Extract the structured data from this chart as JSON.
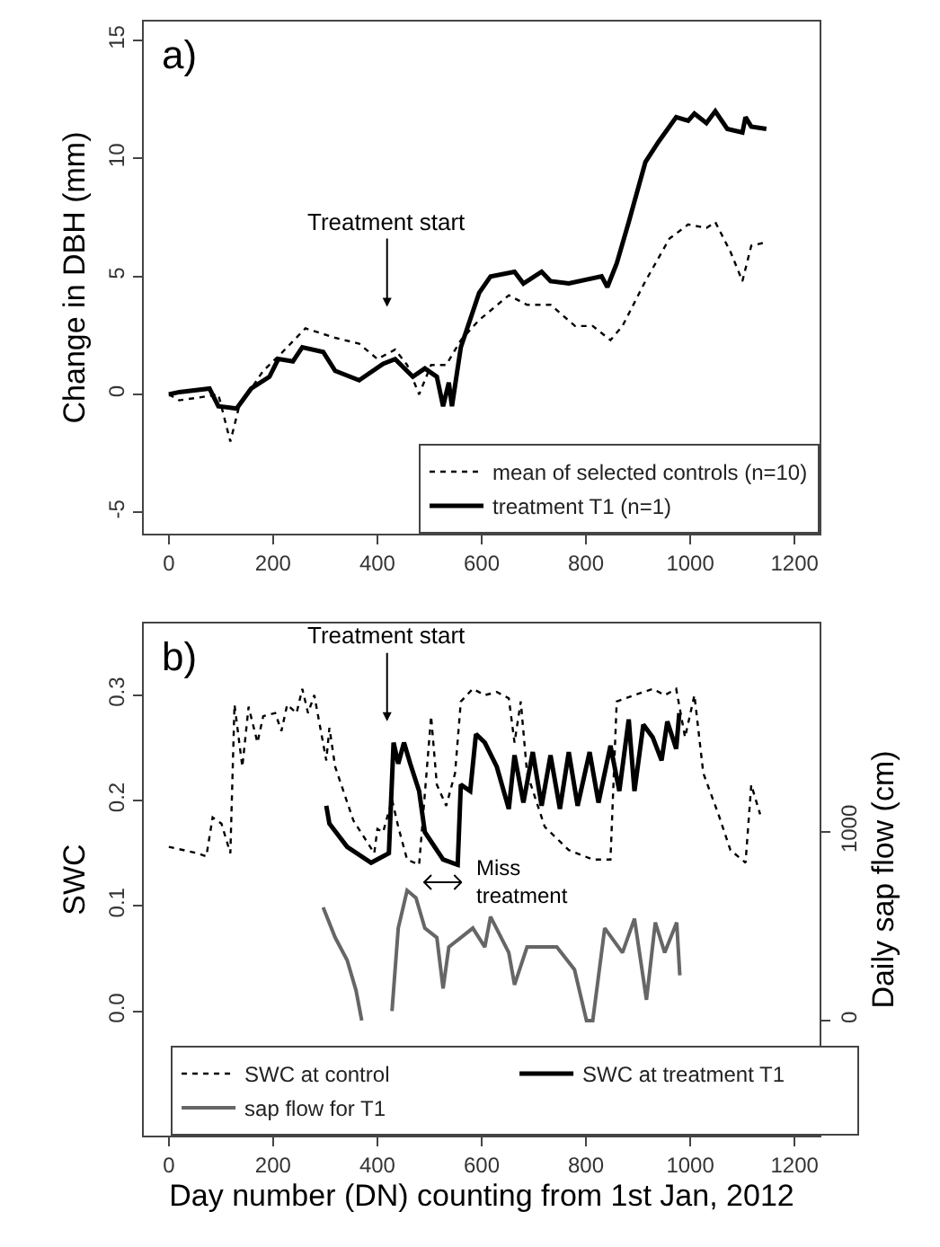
{
  "chart_data": [
    {
      "type": "line",
      "ylabel": "Change in DBH (mm)",
      "xlim": [
        -48,
        1248
      ],
      "ylim": [
        -5.9,
        15.8
      ],
      "xticks": [
        0,
        200,
        400,
        600,
        800,
        1000,
        1200
      ],
      "yticks": [
        -5,
        0,
        5,
        10,
        15
      ],
      "grid": false,
      "legend": "bottom right",
      "marker": "none",
      "annotations": [
        "a)",
        "Treatment start"
      ],
      "series": [
        {
          "name": "mean of selected controls (n=10)",
          "color": "#000000",
          "line_style": "dotted",
          "x": [
            0,
            20,
            67,
            95,
            118,
            135,
            181,
            216,
            262,
            319,
            365,
            400,
            434,
            457,
            480,
            503,
            532,
            560,
            595,
            652,
            687,
            732,
            779,
            813,
            847,
            870,
            914,
            960,
            996,
            1031,
            1048,
            1077,
            1100,
            1117,
            1146
          ],
          "values": [
            0,
            -0.25,
            -0.1,
            0,
            -2.0,
            -0.5,
            1.0,
            1.75,
            2.8,
            2.4,
            2.15,
            1.5,
            1.9,
            1.25,
            0,
            1.25,
            1.25,
            2.3,
            3.15,
            4.2,
            3.8,
            3.8,
            2.9,
            2.9,
            2.3,
            2.9,
            4.8,
            6.6,
            7.2,
            7.05,
            7.3,
            6.05,
            4.8,
            6.3,
            6.45
          ]
        },
        {
          "name": "treatment T1 (n=1)",
          "color": "#000000",
          "line_style": "solid",
          "x": [
            0,
            20,
            78,
            95,
            130,
            158,
            193,
            210,
            238,
            256,
            296,
            319,
            365,
            411,
            434,
            468,
            491,
            514,
            526,
            537,
            543,
            560,
            595,
            617,
            663,
            680,
            715,
            732,
            767,
            830,
            841,
            859,
            882,
            914,
            939,
            973,
            996,
            1008,
            1031,
            1048,
            1071,
            1100,
            1106,
            1117,
            1146
          ],
          "values": [
            0,
            0.1,
            0.25,
            -0.5,
            -0.6,
            0.25,
            0.75,
            1.5,
            1.4,
            2.0,
            1.8,
            1.0,
            0.6,
            1.3,
            1.5,
            0.75,
            1.1,
            0.75,
            -0.5,
            0.5,
            -0.5,
            2.0,
            4.3,
            5.0,
            5.2,
            4.7,
            5.2,
            4.8,
            4.7,
            5.0,
            4.55,
            5.55,
            7.3,
            9.85,
            10.7,
            11.75,
            11.6,
            11.9,
            11.5,
            12.0,
            11.25,
            11.1,
            11.75,
            11.35,
            11.25
          ]
        }
      ]
    },
    {
      "type": "line",
      "xlabel": "Day number (DN) counting from 1st Jan, 2012",
      "ylabel": "SWC",
      "y2label": "Daily sap flow (cm)",
      "xlim": [
        -48,
        1248
      ],
      "ylim": [
        -0.118,
        0.368
      ],
      "y2lim": [
        -610,
        2105
      ],
      "xticks": [
        0,
        200,
        400,
        600,
        800,
        1000,
        1200
      ],
      "yticks": [
        {
          "value": 0,
          "label": "0.0"
        },
        0.1,
        0.2,
        0.3
      ],
      "y2ticks": [
        0,
        1000
      ],
      "grid": false,
      "legend": "bottom",
      "marker": "none",
      "annotations": [
        "b)",
        "Treatment start",
        "Miss\ntreatment"
      ],
      "series": [
        {
          "name": "SWC at control",
          "color": "#000000",
          "line_style": "dotted",
          "x": [
            0,
            55,
            72,
            84,
            101,
            118,
            126,
            141,
            153,
            170,
            181,
            204,
            216,
            227,
            245,
            256,
            267,
            279,
            302,
            308,
            319,
            354,
            394,
            400,
            411,
            428,
            440,
            457,
            480,
            503,
            514,
            532,
            549,
            560,
            583,
            606,
            629,
            652,
            663,
            675,
            687,
            721,
            767,
            813,
            847,
            859,
            893,
            928,
            951,
            973,
            990,
            1008,
            1025,
            1054,
            1077,
            1106,
            1117,
            1134
          ],
          "values": [
            0.156,
            0.15,
            0.147,
            0.184,
            0.178,
            0.15,
            0.291,
            0.232,
            0.289,
            0.255,
            0.28,
            0.283,
            0.266,
            0.291,
            0.283,
            0.306,
            0.283,
            0.3,
            0.238,
            0.269,
            0.232,
            0.181,
            0.15,
            0.173,
            0.17,
            0.201,
            0.175,
            0.144,
            0.139,
            0.28,
            0.215,
            0.195,
            0.226,
            0.294,
            0.306,
            0.3,
            0.303,
            0.297,
            0.255,
            0.294,
            0.226,
            0.175,
            0.153,
            0.144,
            0.144,
            0.294,
            0.3,
            0.306,
            0.3,
            0.306,
            0.26,
            0.3,
            0.226,
            0.187,
            0.153,
            0.141,
            0.215,
            0.187
          ]
        },
        {
          "name": "SWC at treatment T1",
          "color": "#000000",
          "line_style": "solid",
          "x": [
            302,
            308,
            342,
            388,
            422,
            431,
            440,
            451,
            463,
            480,
            491,
            526,
            554,
            560,
            578,
            589,
            606,
            629,
            652,
            663,
            680,
            698,
            715,
            732,
            750,
            767,
            784,
            807,
            824,
            847,
            864,
            882,
            893,
            910,
            928,
            945,
            956,
            973,
            979
          ],
          "values": [
            0.195,
            0.178,
            0.156,
            0.141,
            0.15,
            0.255,
            0.235,
            0.255,
            0.235,
            0.209,
            0.17,
            0.144,
            0.139,
            0.215,
            0.209,
            0.263,
            0.255,
            0.232,
            0.192,
            0.243,
            0.198,
            0.246,
            0.195,
            0.243,
            0.192,
            0.246,
            0.195,
            0.246,
            0.198,
            0.252,
            0.209,
            0.277,
            0.209,
            0.272,
            0.26,
            0.238,
            0.275,
            0.249,
            0.283
          ]
        },
        {
          "name": "sap flow for T1",
          "color": "#666666",
          "line_style": "solid",
          "axis": "y2",
          "x": [
            296,
            319,
            342,
            359,
            370,
            400,
            428,
            440,
            457,
            474,
            491,
            514,
            526,
            537,
            560,
            583,
            606,
            617,
            652,
            663,
            687,
            721,
            744,
            778,
            801,
            813,
            836,
            870,
            893,
            916,
            933,
            951,
            974,
            980
          ],
          "values": [
            600,
            440,
            320,
            160,
            0,
            null,
            50,
            490,
            690,
            650,
            490,
            440,
            170,
            390,
            440,
            490,
            390,
            550,
            360,
            190,
            390,
            390,
            390,
            270,
            0,
            0,
            490,
            360,
            540,
            110,
            520,
            360,
            520,
            240
          ]
        }
      ]
    }
  ]
}
